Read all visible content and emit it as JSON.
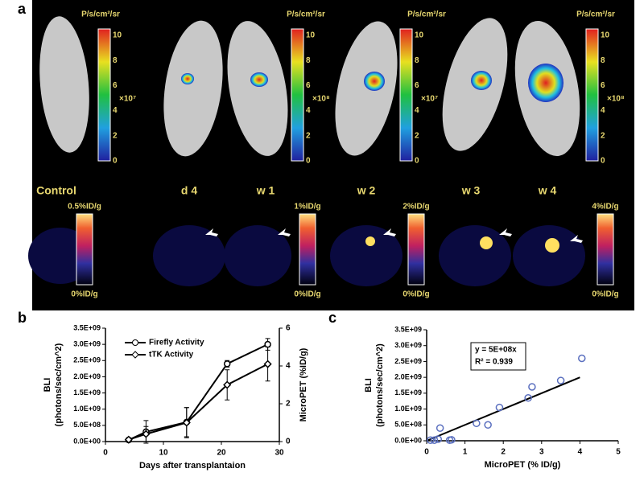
{
  "panel_a": {
    "label": "a",
    "colorbars": [
      {
        "unit": "P/s/cm²/sr",
        "multiplier": "×10⁷",
        "ticks": [
          0,
          2,
          4,
          6,
          8,
          10
        ]
      },
      {
        "unit": "P/s/cm²/sr",
        "multiplier": "×10⁸",
        "ticks": [
          0,
          2,
          4,
          6,
          8,
          10
        ]
      },
      {
        "unit": "P/s/cm²/sr",
        "multiplier": "×10⁷",
        "ticks": [
          0,
          2,
          4,
          6,
          8,
          10
        ]
      },
      {
        "unit": "P/s/cm²/sr",
        "multiplier": "×10⁸",
        "ticks": [
          0,
          2,
          4,
          6,
          8,
          10
        ]
      }
    ],
    "timepoints": [
      "Control",
      "d 4",
      "w 1",
      "w 2",
      "w 3",
      "w 4"
    ],
    "pet_colorbars": [
      {
        "top": "0.5%ID/g",
        "bottom": "0%ID/g"
      },
      {
        "top": "1%ID/g",
        "bottom": "0%ID/g"
      },
      {
        "top": "2%ID/g",
        "bottom": "0%ID/g"
      },
      {
        "top": "4%ID/g",
        "bottom": "0%ID/g"
      }
    ]
  },
  "chart_data": [
    {
      "type": "line",
      "panel": "b",
      "x": [
        4,
        7,
        14,
        21,
        28
      ],
      "xlim": [
        0,
        30
      ],
      "xticks": [
        0,
        10,
        20,
        30
      ],
      "xlabel": "Days after transplantaion",
      "ylabel": [
        "BLI",
        "(photons/sec/cm^2)"
      ],
      "y2label": "MicroPET (%ID/g)",
      "ylim": [
        0,
        3500000000
      ],
      "yticks": [
        {
          "value": 0,
          "label": "0.0E+00"
        },
        {
          "value": 500000000,
          "label": "5.0E+08"
        },
        {
          "value": 1000000000,
          "label": "1.0E+09"
        },
        {
          "value": 1500000000,
          "label": "1.5E+09"
        },
        {
          "value": 2000000000,
          "label": "2.0E+09"
        },
        {
          "value": 2500000000,
          "label": "2.5E+09"
        },
        {
          "value": 3000000000,
          "label": "3.0E+09"
        },
        {
          "value": 3500000000,
          "label": "3.5E+09"
        }
      ],
      "y2lim": [
        0,
        6
      ],
      "y2ticks": [
        0,
        2,
        4,
        6
      ],
      "series": [
        {
          "name": "Firefly Activity",
          "color": "#000000",
          "marker": "circle",
          "values": [
            50000000,
            300000000,
            600000000,
            2400000000,
            3000000000
          ],
          "errors": [
            20000000,
            350000000,
            450000000,
            100000000,
            180000000
          ]
        },
        {
          "name": "tTK Activity",
          "color": "#000000",
          "marker": "diamond",
          "axis": "y2",
          "values": [
            0.1,
            0.4,
            1,
            3,
            4.1
          ],
          "errors": [
            0.05,
            0.4,
            0.8,
            0.8,
            0.9
          ]
        }
      ]
    },
    {
      "type": "scatter",
      "panel": "c",
      "xlim": [
        0,
        5
      ],
      "xticks": [
        0,
        1,
        2,
        3,
        4,
        5
      ],
      "xlabel": "MicroPET (% ID/g)",
      "ylabel": [
        "BLI",
        "(photons/sec/cm^2)"
      ],
      "ylim": [
        0,
        3500000000
      ],
      "yticks": [
        {
          "value": 0,
          "label": "0.0E+00"
        },
        {
          "value": 500000000,
          "label": "5.0E+08"
        },
        {
          "value": 1000000000,
          "label": "1.0E+09"
        },
        {
          "value": 1500000000,
          "label": "1.5E+09"
        },
        {
          "value": 2000000000,
          "label": "2.0E+09"
        },
        {
          "value": 2500000000,
          "label": "2.5E+09"
        },
        {
          "value": 3000000000,
          "label": "3.0E+09"
        },
        {
          "value": 3500000000,
          "label": "3.5E+09"
        }
      ],
      "x": [
        0.1,
        0.2,
        0.3,
        0.35,
        0.6,
        0.65,
        1.3,
        1.6,
        1.9,
        2.65,
        2.75,
        3.5,
        4.05
      ],
      "values": [
        20000000,
        20000000,
        50000000,
        400000000,
        20000000,
        30000000,
        550000000,
        500000000,
        1050000000,
        1350000000,
        1700000000,
        1900000000,
        2600000000
      ],
      "color": "#5a6fbf",
      "trendline": {
        "x": [
          0,
          4
        ],
        "values": [
          0,
          2000000000
        ]
      },
      "annotations": [
        "y = 5E+08x",
        "R² = 0.939"
      ]
    }
  ]
}
